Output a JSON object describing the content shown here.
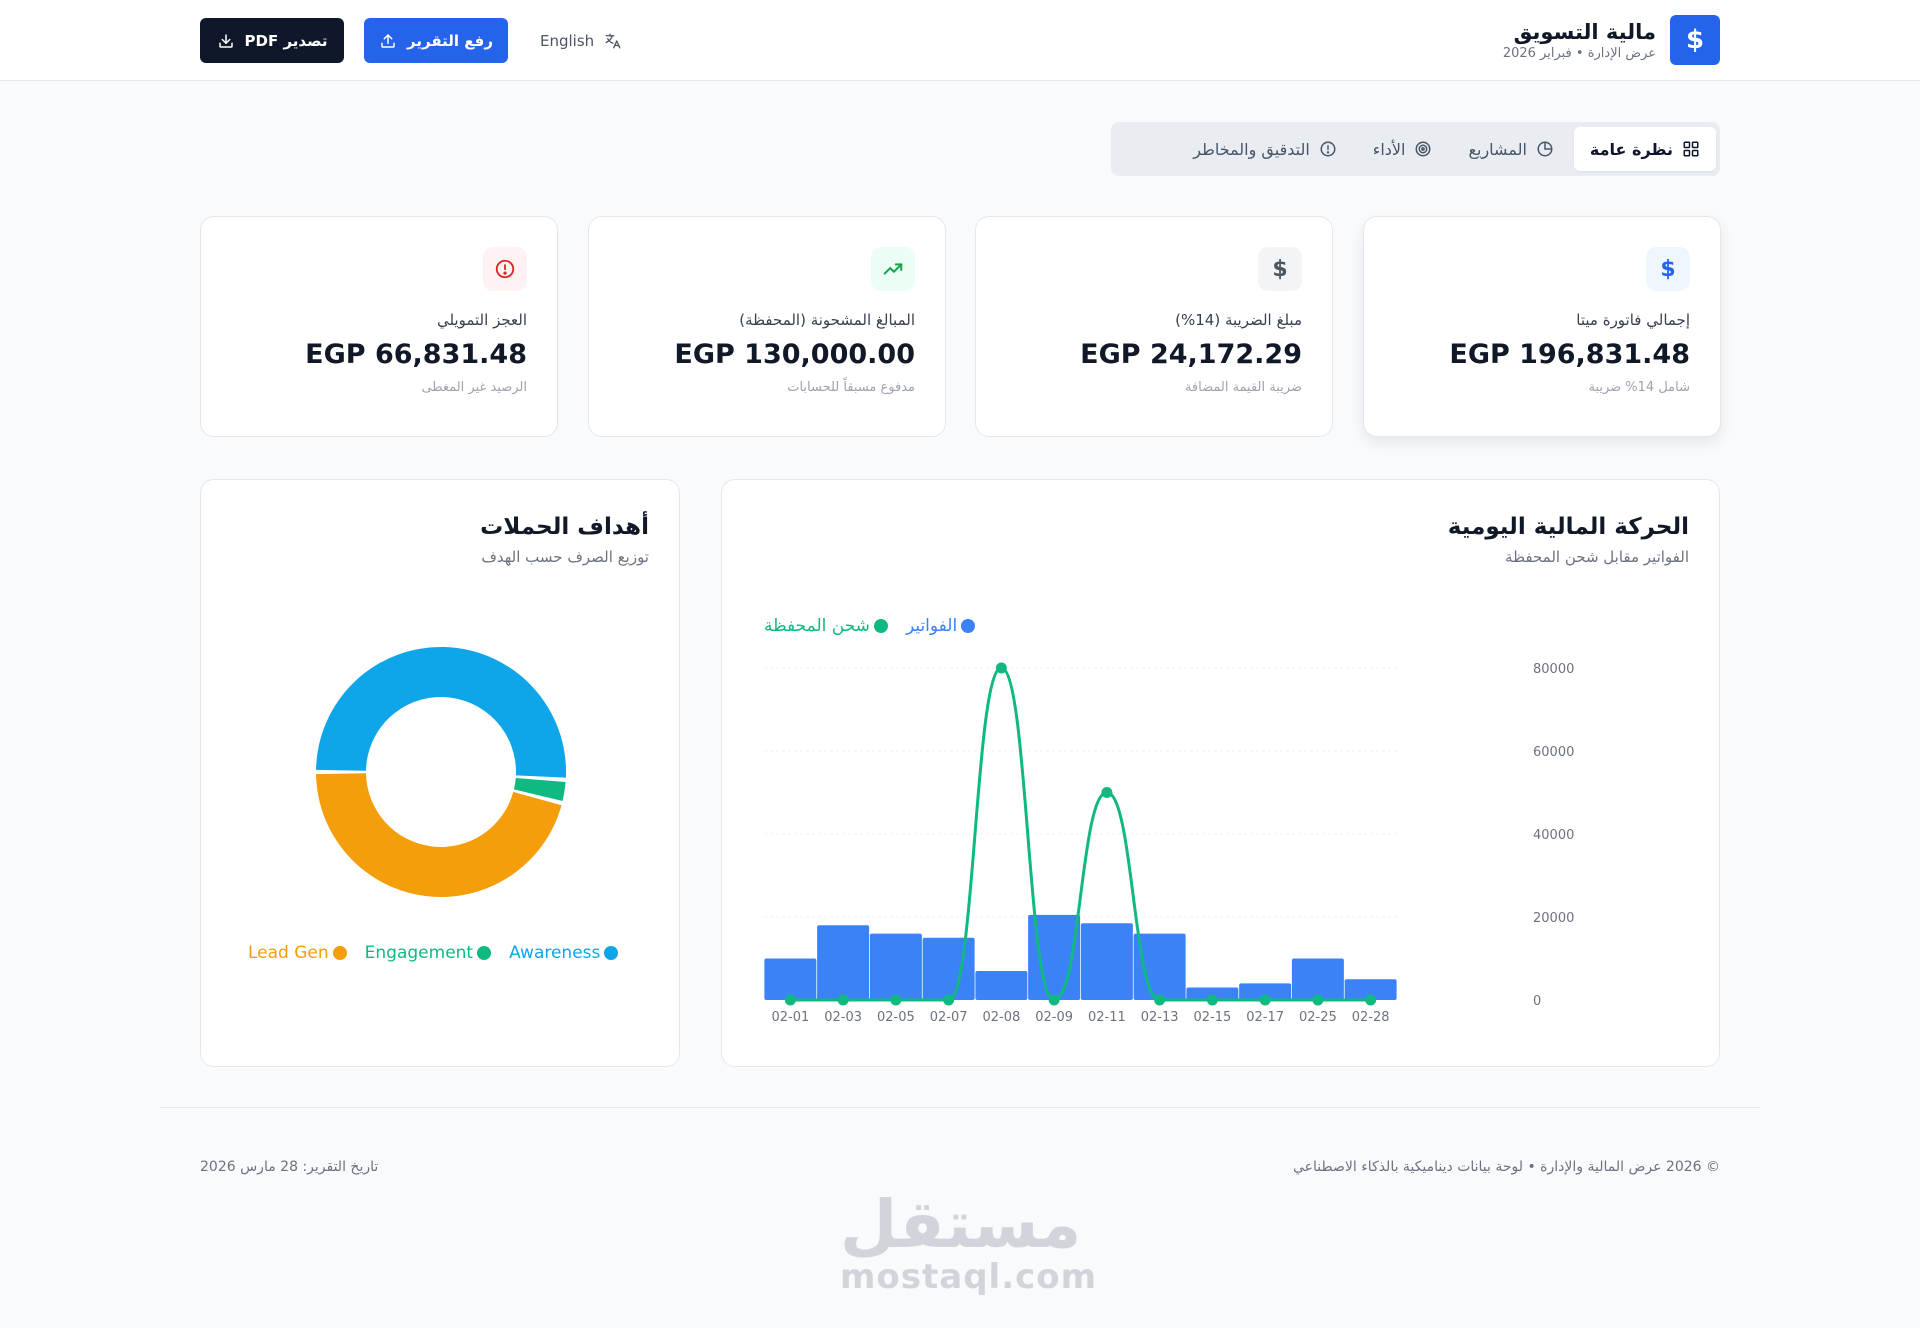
{
  "header": {
    "brand_title": "مالية التسويق",
    "brand_subtitle": "عرض الإدارة • فبراير 2026",
    "brand_icon": "dollar-icon",
    "export_pdf_label": "تصدير PDF",
    "upload_report_label": "رفع التقرير",
    "language_label": "English"
  },
  "tabs": [
    {
      "label": "نظرة عامة",
      "icon": "grid-icon",
      "active": true
    },
    {
      "label": "المشاريع",
      "icon": "pie-icon",
      "active": false
    },
    {
      "label": "الأداء",
      "icon": "target-icon",
      "active": false
    },
    {
      "label": "التدقيق والمخاطر",
      "icon": "alert-circle-icon",
      "active": false
    }
  ],
  "kpis": [
    {
      "label": "إجمالي فاتورة ميتا",
      "value": "EGP 196,831.48",
      "sub": "شامل 14% ضريبة",
      "icon": "dollar-icon",
      "color": "#2563eb",
      "bg": "#eff6ff"
    },
    {
      "label": "مبلغ الضريبة (14%)",
      "value": "EGP 24,172.29",
      "sub": "ضريبة القيمة المضافة",
      "icon": "dollar-icon",
      "color": "#4b5563",
      "bg": "#f3f4f6"
    },
    {
      "label": "المبالغ المشحونة (المحفظة)",
      "value": "EGP 130,000.00",
      "sub": "مدفوع مسبقاً للحسابات",
      "icon": "trending-up-icon",
      "color": "#16a34a",
      "bg": "#ecfdf5"
    },
    {
      "label": "العجز التمويلي",
      "value": "EGP 66,831.48",
      "sub": "الرصيد غير المغطى",
      "icon": "alert-circle-icon",
      "color": "#dc2626",
      "bg": "#fef2f2"
    }
  ],
  "daily_chart": {
    "title": "الحركة المالية اليومية",
    "subtitle": "الفواتير مقابل شحن المحفظة"
  },
  "campaign_chart": {
    "title": "أهداف الحملات",
    "subtitle": "توزيع الصرف حسب الهدف"
  },
  "chart_data": [
    {
      "type": "bar",
      "categories": [
        "02-01",
        "02-03",
        "02-05",
        "02-07",
        "02-08",
        "02-09",
        "02-11",
        "02-13",
        "02-15",
        "02-17",
        "02-25",
        "02-28"
      ],
      "series": [
        {
          "name": "الفواتير",
          "kind": "bar",
          "color": "#3b82f6",
          "values": [
            10000,
            18000,
            16000,
            15000,
            7000,
            20500,
            18500,
            16000,
            3000,
            4000,
            10000,
            5000
          ]
        },
        {
          "name": "شحن المحفظة",
          "kind": "line",
          "color": "#10b981",
          "values": [
            0,
            0,
            0,
            0,
            80000,
            0,
            50000,
            0,
            0,
            0,
            0,
            0
          ]
        }
      ],
      "yticks": [
        0,
        20000,
        40000,
        60000,
        80000
      ],
      "ylim": [
        0,
        80000
      ],
      "grid": true,
      "legend_position": "top-left"
    },
    {
      "type": "pie",
      "donut": true,
      "labels": [
        "Awareness",
        "Engagement",
        "Lead Gen"
      ],
      "values": [
        51,
        3,
        46
      ],
      "colors": [
        "#0ea5e9",
        "#10b981",
        "#f59e0b"
      ],
      "legend_position": "bottom"
    }
  ],
  "footer": {
    "copyright": "© 2026 عرض المالية والإدارة • لوحة بيانات ديناميكية بالذكاء الاصطناعي",
    "report_date": "تاريخ التقرير: 28 مارس 2026"
  },
  "watermark": {
    "arabic": "مستقل",
    "latin": "mostaql.com"
  }
}
